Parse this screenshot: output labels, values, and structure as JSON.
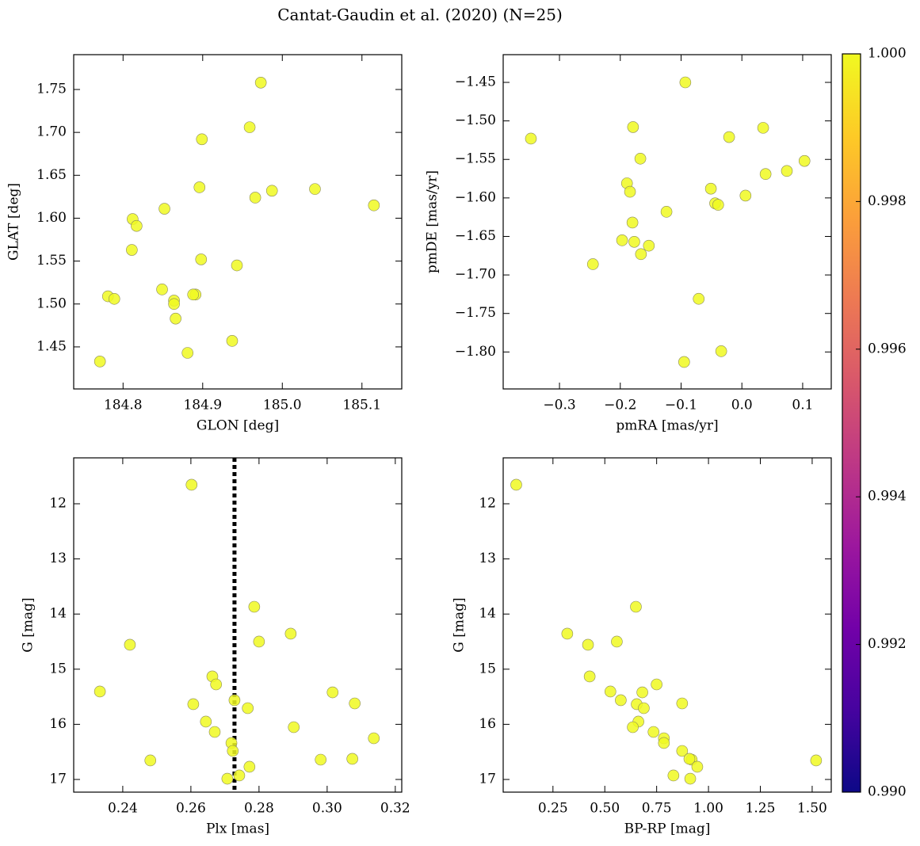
{
  "title": "Cantat-Gaudin et al. (2020) (N=25)",
  "chart_data": [
    {
      "type": "scatter",
      "xlabel": "GLON [deg]",
      "ylabel": "GLAT [deg]",
      "x": [
        184.973,
        184.959,
        184.899,
        184.896,
        184.987,
        184.966,
        185.041,
        185.115,
        184.852,
        184.812,
        184.817,
        184.811,
        184.898,
        184.943,
        184.849,
        184.781,
        184.789,
        184.864,
        184.864,
        184.891,
        184.888,
        184.866,
        184.937,
        184.881,
        184.771
      ],
      "series": [
        {
          "color": "#f0f921",
          "values": [
            1.758,
            1.706,
            1.692,
            1.636,
            1.632,
            1.624,
            1.634,
            1.615,
            1.611,
            1.599,
            1.591,
            1.563,
            1.552,
            1.545,
            1.517,
            1.509,
            1.506,
            1.504,
            1.5,
            1.511,
            1.511,
            1.483,
            1.457,
            1.443,
            1.433
          ]
        }
      ],
      "xlim": [
        184.738,
        185.15
      ],
      "ylim": [
        1.401,
        1.7906
      ],
      "xticks": [
        184.8,
        184.9,
        {
          "value": 185,
          "label": "185.0"
        },
        185.1
      ],
      "yticks": [
        1.45,
        {
          "value": 1.5,
          "label": "1.50"
        },
        1.55,
        {
          "value": 1.6,
          "label": "1.60"
        },
        1.65,
        {
          "value": 1.7,
          "label": "1.70"
        },
        1.75
      ]
    },
    {
      "type": "scatter",
      "xlabel": "pmRA [mas/yr]",
      "ylabel": "pmDE [mas/yr]",
      "x": [
        -0.093,
        -0.347,
        -0.179,
        0.035,
        -0.021,
        -0.167,
        -0.189,
        -0.184,
        -0.051,
        0.006,
        0.039,
        0.074,
        0.103,
        -0.044,
        -0.039,
        -0.124,
        -0.18,
        -0.197,
        -0.177,
        -0.153,
        -0.166,
        -0.245,
        -0.071,
        -0.034,
        -0.095
      ],
      "series": [
        {
          "color": "#f0f921",
          "values": [
            -1.45,
            -1.523,
            -1.508,
            -1.509,
            -1.521,
            -1.549,
            -1.581,
            -1.592,
            -1.588,
            -1.597,
            -1.569,
            -1.565,
            -1.552,
            -1.607,
            -1.609,
            -1.618,
            -1.632,
            -1.655,
            -1.657,
            -1.662,
            -1.673,
            -1.686,
            -1.731,
            -1.799,
            -1.813
          ]
        }
      ],
      "xlim": [
        -0.3926,
        0.147
      ],
      "ylim": [
        -1.848,
        -1.414
      ],
      "xticks": [
        {
          "value": -0.3,
          "label": "−0.3"
        },
        {
          "value": -0.2,
          "label": "−0.2"
        },
        {
          "value": -0.1,
          "label": "−0.1"
        },
        {
          "value": 0,
          "label": "0.0"
        },
        0.1
      ],
      "yticks": [
        {
          "value": -1.8,
          "label": "−1.80"
        },
        {
          "value": -1.75,
          "label": "−1.75"
        },
        {
          "value": -1.7,
          "label": "−1.70"
        },
        {
          "value": -1.65,
          "label": "−1.65"
        },
        {
          "value": -1.6,
          "label": "−1.60"
        },
        {
          "value": -1.55,
          "label": "−1.55"
        },
        {
          "value": -1.5,
          "label": "−1.50"
        },
        {
          "value": -1.45,
          "label": "−1.45"
        }
      ]
    },
    {
      "type": "scatter",
      "xlabel": "Plx [mas]",
      "ylabel": "G [mag]",
      "x": [
        0.2602,
        0.2786,
        0.2893,
        0.28,
        0.2421,
        0.2663,
        0.2674,
        0.2333,
        0.3016,
        0.2728,
        0.3081,
        0.2607,
        0.2767,
        0.2644,
        0.2902,
        0.267,
        0.3137,
        0.2719,
        0.2723,
        0.2481,
        0.2981,
        0.3074,
        0.2772,
        0.2742,
        0.2707
      ],
      "series": [
        {
          "color": "#f0f921",
          "values": [
            11.655,
            13.868,
            14.356,
            14.5,
            14.557,
            15.132,
            15.276,
            15.405,
            15.42,
            15.563,
            15.621,
            15.635,
            15.707,
            15.951,
            16.052,
            16.138,
            16.253,
            16.339,
            16.483,
            16.655,
            16.641,
            16.626,
            16.77,
            16.928,
            16.986
          ]
        }
      ],
      "xlim": [
        0.2256,
        0.3219
      ],
      "ylim": [
        17.23,
        11.167
      ],
      "xticks": [
        0.24,
        0.26,
        0.28,
        {
          "value": 0.3,
          "label": "0.30"
        },
        0.32
      ],
      "yticks": [
        12,
        13,
        14,
        15,
        16,
        17
      ],
      "vline": 0.2728,
      "vline_color": "#000000"
    },
    {
      "type": "scatter",
      "xlabel": "BP-RP [mag]",
      "ylabel": "G [mag]",
      "x": [
        0.073,
        0.65,
        0.319,
        0.558,
        0.419,
        0.427,
        0.75,
        0.527,
        0.681,
        0.577,
        0.873,
        0.654,
        0.688,
        0.662,
        0.635,
        0.735,
        0.785,
        0.785,
        0.873,
        1.519,
        0.919,
        0.908,
        0.946,
        0.831,
        0.912
      ],
      "series": [
        {
          "color": "#f0f921",
          "values": [
            11.655,
            13.868,
            14.356,
            14.5,
            14.557,
            15.132,
            15.276,
            15.405,
            15.42,
            15.563,
            15.621,
            15.635,
            15.707,
            15.951,
            16.052,
            16.138,
            16.253,
            16.339,
            16.483,
            16.655,
            16.641,
            16.626,
            16.77,
            16.928,
            16.986
          ]
        }
      ],
      "xlim": [
        0.01,
        1.592
      ],
      "ylim": [
        17.23,
        11.167
      ],
      "xticks": [
        0.25,
        {
          "value": 0.5,
          "label": "0.50"
        },
        0.75,
        {
          "value": 1,
          "label": "1.00"
        },
        1.25,
        {
          "value": 1.5,
          "label": "1.50"
        }
      ],
      "yticks": [
        12,
        13,
        14,
        15,
        16,
        17
      ]
    },
    {
      "type": "colorbar",
      "cmap": "plasma",
      "ylim": [
        0.99,
        1.0
      ],
      "yticks": [
        {
          "value": 0.99,
          "label": "0.990"
        },
        0.992,
        0.994,
        0.996,
        0.998,
        {
          "value": 1,
          "label": "1.000"
        }
      ]
    }
  ]
}
